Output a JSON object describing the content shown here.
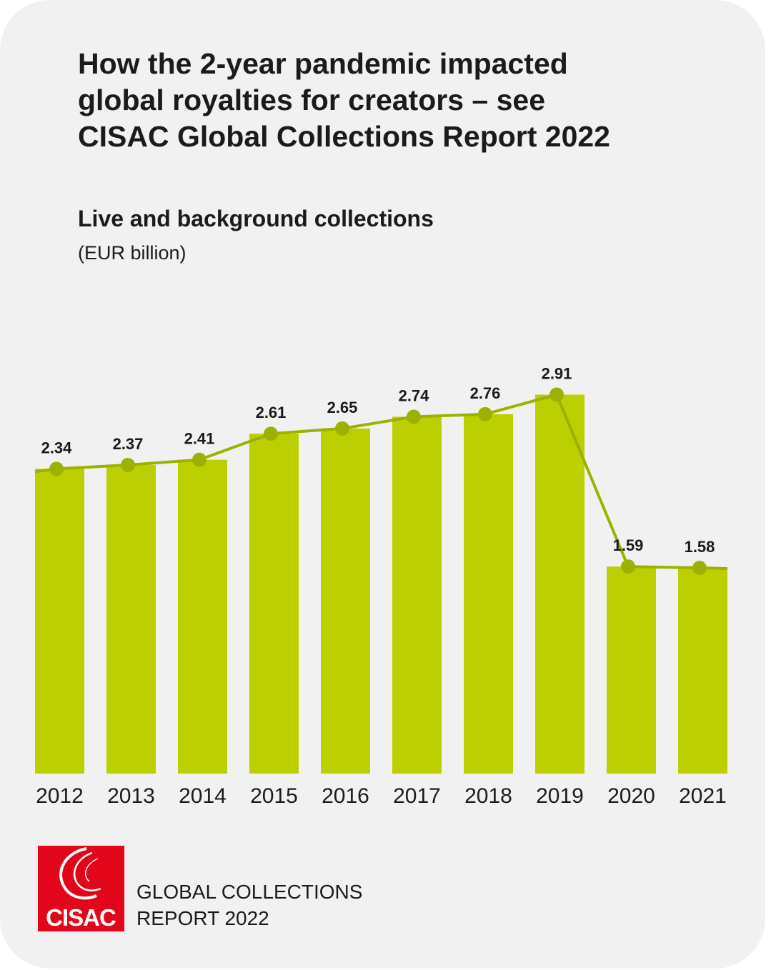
{
  "title_lines": [
    "How the 2-year pandemic impacted",
    "global royalties for creators – see",
    "CISAC Global Collections Report 2022"
  ],
  "colors": {
    "background": "#f1f1f1",
    "bar": "#bccf00",
    "line": "#9db200",
    "text": "#1b1b1b",
    "logo_red": "#e3061b"
  },
  "chart_data": {
    "type": "bar",
    "title": "Live and background collections",
    "subtitle": "(EUR billion)",
    "categories": [
      "2012",
      "2013",
      "2014",
      "2015",
      "2016",
      "2017",
      "2018",
      "2019",
      "2020",
      "2021"
    ],
    "series": [
      {
        "values": [
          2.34,
          2.37,
          2.41,
          2.61,
          2.65,
          2.74,
          2.76,
          2.91,
          1.59,
          1.58
        ]
      }
    ],
    "value_labels": [
      "2.34",
      "2.37",
      "2.41",
      "2.61",
      "2.65",
      "2.74",
      "2.76",
      "2.91",
      "1.59",
      "1.58"
    ],
    "overlay": "line with markers connecting bar values",
    "grid": false,
    "legend": "none",
    "ylim": [
      0,
      2.91
    ]
  },
  "logo": {
    "text": "CISAC",
    "icon": "cisac-logo-icon"
  },
  "footer": {
    "line1": "GLOBAL COLLECTIONS",
    "line2": "REPORT 2022"
  }
}
